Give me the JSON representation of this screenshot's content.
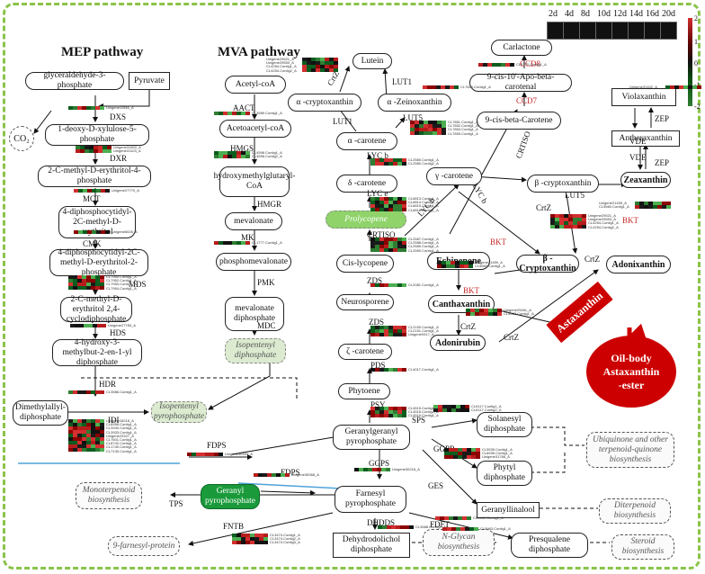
{
  "titles": {
    "mep": "MEP pathway",
    "mva": "MVA pathway"
  },
  "legend": {
    "stages": [
      "2d",
      "4d",
      "8d",
      "10d",
      "12d",
      "14d",
      "16d",
      "20d"
    ],
    "scale": [
      "2",
      "1",
      "0",
      "-1",
      "-2"
    ]
  },
  "co2": "CO₂",
  "nodes": {
    "g3p": "glyceraldehyde-3-phosphate",
    "pyr": "Pyruvate",
    "dxp": "1-deoxy-D-xylulose-5-phosphate",
    "mep": "2-C-methyl-D-erythritol-4-phosphate",
    "cdpme": "4-diphosphocytidyl-2C-methyl-D-erythritol",
    "cdpmep": "4-diphosphocytidyl-2C-methyl-D-erythritol-2-phosphate",
    "mecpp": "2-C-methyl-D-erythritol 2,4-cyclodiphosphate",
    "hmbpp": "4-hydroxy-3-methylbut-2-en-1-yl diphosphate",
    "dmapp": "Dimethylallyl-diphosphate",
    "ipp": "Isopentenyl pyrophosphate",
    "acetylcoa": "Acetyl-coA",
    "acetoacetylcoa": "Acetoacetyl-coA",
    "hmgcoa": "hydroxymethylglutaryl-CoA",
    "mevalonate": "mevalonate",
    "phosphomev": "phosphomevalonate",
    "mevpp": "mevalonate diphosphate",
    "ippmva": "Isopentenyl diphosphate",
    "lutein": "Lutein",
    "acrypto": "α -cryptoxanthin",
    "azein": "α -Zeinoxanthin",
    "acarotene": "α -carotene",
    "dcarotene": "δ -carotene",
    "prolyco": "Prolycopene",
    "cislyco": "Cis-lycopene",
    "neuro": "Neurosporene",
    "zcarotene": "ζ -carotene",
    "phytoene": "Phytoene",
    "ggpp": "Geranylgeranyl pyrophosphate",
    "fpp": "Farnesyl pyrophosphate",
    "dolpp": "Dehydrodolichol diphosphate",
    "carlactone": "Carlactone",
    "apo": "9-cis-10'-Apo-beta-carotenal",
    "cisbeta": "9-cis-beta-Carotene",
    "gcarotene": "γ -carotene",
    "bcrypto": "β -cryptoxanthin",
    "violax": "Violaxanthin",
    "antherax": "Antheraxanthin",
    "zeax": "Zeaxanthin",
    "echinenone": "Echinenone",
    "bcryptob": "β -Cryptoxanthin",
    "adonix": "Adonixanthin",
    "cantha": "Canthaxanthin",
    "adonirubin": "Adonirubin",
    "solanesyl": "Solanesyl diphosphate",
    "phytyl": "Phytyl diphosphate",
    "gerlin": "Geranyllinalool",
    "presq": "Presqualene diphosphate",
    "ubiq": "Ubiquinone and other terpenoid-quinone biosynthesis",
    "diterp": "Diterpenoid biosynthesis",
    "steroid": "Steroid biosynthesis",
    "polyprenol": "N-Glycan biosynthesis",
    "monoterp": "Monoterpenoid biosynthesis",
    "farnesol": "9-farnesyl-protein",
    "gpp": "Geranyl pyrophosphate",
    "ipp2": "Isopentenyl pyrophosphate"
  },
  "astax": "Astaxanthin",
  "oil": [
    "Oil-body",
    "Astaxanthin",
    "-ester"
  ],
  "enzymes": {
    "dxs": "DXS",
    "dxr": "DXR",
    "mct": "MCT",
    "cmk": "CMK",
    "mds": "MDS",
    "hds": "HDS",
    "hdr": "HDR",
    "idi": "IDI",
    "aact": "AACT",
    "hmgs": "HMGS",
    "hmgr": "HMGR",
    "mk": "MK",
    "pmk": "PMK",
    "mdc": "MDC",
    "fdps": "FDPS",
    "tps": "TPS",
    "fntb": "FNTB",
    "dhdds": "DHDDS",
    "fdft": "FDFT",
    "ggps": "GGPS",
    "psy": "PSY",
    "pds": "PDS",
    "zds": "ZDS",
    "zds2": "ZDS",
    "crtiso": "CRTISO",
    "lycb": "LYC b",
    "lyce": "LYC e",
    "lycb2": "LYC b",
    "lycb3": "LYC b",
    "lut5": "LUT5",
    "lut1": "LUT1",
    "lut1b": "LUT1",
    "crtz": "CrtZ",
    "crtz2": "CrtZ",
    "crtz3": "CrtZ",
    "crtz4": "CrtZ",
    "crtz5": "CrtZ",
    "crtz6": "CrtZ",
    "vde": "VDE",
    "vde2": "VDE",
    "zep": "ZEP",
    "zep2": "ZEP",
    "sps": "SPS",
    "ggpr": "GGPR",
    "ges": "GES",
    "bkt": "BKT",
    "bkt2": "BKT",
    "bkt3": "BKT",
    "ccd8": "CCD8",
    "ccd7": "CCD7",
    "d27": "D27",
    "crtiso2": "CRTISO",
    "lut5b": "LUT5"
  },
  "genes": {
    "dxs": [
      "Unigene11946_A"
    ],
    "dxr": [
      "Unigene31802_A",
      "Unigene31103_A"
    ],
    "mct": [
      "Unigene27770_A"
    ],
    "cmk": [
      "Unigene6026_A"
    ],
    "mds": [
      "CL7950.Contig1_A",
      "CL7952.Contig1_A",
      "CL7953.Contig1_A",
      "CL7954.Contig1_A"
    ],
    "hds": [
      "Unigene27783_A"
    ],
    "hdr": [
      "CL3586.Contig1_A"
    ],
    "idi": [
      "Unigene18218_A",
      "CL8958.Contig1_A",
      "CL3940.Contig1_A",
      "CL3933.Contig1_A",
      "Unigene23327_A",
      "CL7601.Contig1_A",
      "CL8742.Contig1_A",
      "CL1740.Contig1_A",
      "CL7130.Contig1_A"
    ],
    "aact": [
      "CL4589.Contig1_A"
    ],
    "hmgs": [
      "CL4598.Contig1_A",
      "CL4598.Contig2_A"
    ],
    "mk": [
      "CL1777.Contig1_A"
    ],
    "psy": [
      "CL4515.Contig1_A",
      "CL4515.Contig2_A",
      "CL4516.Contig1_A"
    ],
    "pds": [
      "CL4017.Contig1_A"
    ],
    "zds": [
      "CL2150.Contig1_A",
      "CL2151.Contig1_A",
      "Unigene9317_A"
    ],
    "zds2": [
      "CL2081.Contig1_A"
    ],
    "crtiso": [
      "CL2587.Contig1_A",
      "CL2588.Contig1_A",
      "CL2589.Contig1_A",
      "CL2590.Contig1_A"
    ],
    "lyce": [
      "CL6813.Contig1_A",
      "CL6814.Contig1_A",
      "CL6815.Contig1_A",
      "CL6816.Contig1_A"
    ],
    "lycb": [
      "CL2580.Contig1_A",
      "CL2580.Contig2_A"
    ],
    "lut5": [
      "CL7851.Contig1_A",
      "CL7852.Contig1_A",
      "CL7854.Contig1_A",
      "CL7855.Contig1_A"
    ],
    "lut1": [
      "CL7826.Contig1_A"
    ],
    "crtz": [
      "Unigene29521_A",
      "Unigene29553_A",
      "CL4254.Contig1_A",
      "CL4254.Contig2_A"
    ],
    "ccd": [
      "CL5170.Contig1_A"
    ],
    "zep": [
      "Unigene31402_A"
    ],
    "bkt": [
      "Unigene21459_A",
      "CL5660.Contig1_A"
    ],
    "bkt2": [
      "Unigene29461_A",
      "CL5663.Contig1_A"
    ],
    "sps": [
      "CL6117.Contig1_A",
      "CL6117.Contig2_A"
    ],
    "ggpr": [
      "CL5539.Contig1_A",
      "CL8935.Contig1_A",
      "Unigene31766_A"
    ],
    "ggps": [
      "Unigene30218_A"
    ],
    "fdps": [
      "Unigene30393_A"
    ],
    "fdps2": [
      "Unigene35368_A"
    ],
    "fntb": [
      "CL3474.Contig1_A",
      "CL3474.Contig2_A",
      "CL3474.Contig3_A"
    ],
    "dhdds": [
      "CL3588.Contig1_A"
    ],
    "fdft": [
      "CL5963.Contig1_A"
    ],
    "ges": [
      "CL4489.Contig1_A"
    ]
  }
}
